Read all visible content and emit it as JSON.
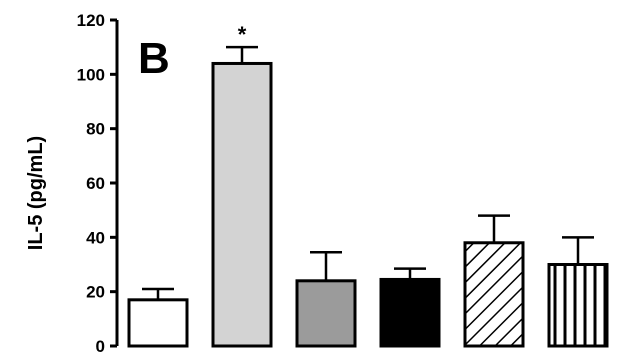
{
  "chart_data": {
    "type": "bar",
    "panel_label": "B",
    "ylabel": "IL-5 (pg/mL)",
    "ylim": [
      0,
      120
    ],
    "yticks": [
      "0",
      "20",
      "40",
      "60",
      "80",
      "100",
      "120"
    ],
    "grid": false,
    "legend": "none",
    "bars": [
      {
        "value": 17,
        "error": 4,
        "fill": "#ffffff",
        "pattern": "none",
        "annotation": ""
      },
      {
        "value": 104,
        "error": 6,
        "fill": "#d3d3d3",
        "pattern": "none",
        "annotation": "*"
      },
      {
        "value": 24,
        "error": 10.5,
        "fill": "#9b9b9b",
        "pattern": "none",
        "annotation": ""
      },
      {
        "value": 24.5,
        "error": 4,
        "fill": "#000000",
        "pattern": "none",
        "annotation": ""
      },
      {
        "value": 38,
        "error": 10,
        "fill": "#ffffff",
        "pattern": "diagonal-hatch",
        "annotation": ""
      },
      {
        "value": 30,
        "error": 10,
        "fill": "#ffffff",
        "pattern": "vertical-stripes",
        "annotation": ""
      }
    ],
    "colors": {
      "axis": "#000000",
      "bar_stroke": "#000000"
    }
  }
}
